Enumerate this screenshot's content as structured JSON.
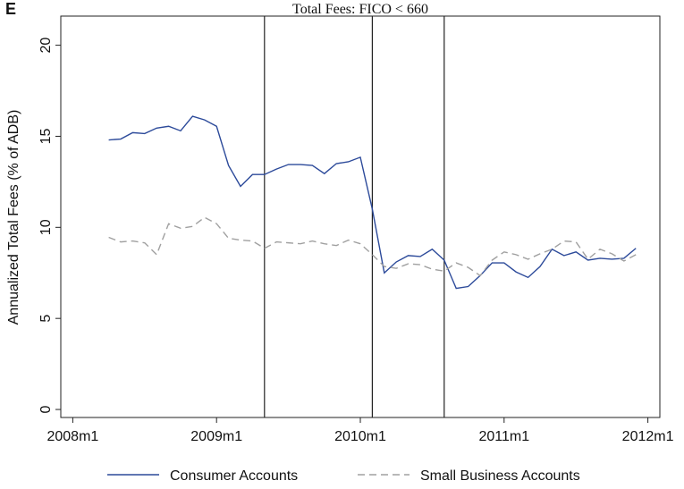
{
  "chart_data": {
    "type": "line",
    "panel_label": "E",
    "title": "Total Fees: FICO < 660",
    "y_label": "Annualized Total Fees (% of ADB)",
    "x": [
      579,
      580,
      581,
      582,
      583,
      584,
      585,
      586,
      587,
      588,
      589,
      590,
      591,
      592,
      593,
      594,
      595,
      596,
      597,
      598,
      599,
      600,
      601,
      602,
      603,
      604,
      605,
      606,
      607,
      608,
      609,
      610,
      611,
      612,
      613,
      614,
      615,
      616,
      617,
      618,
      619,
      620,
      621,
      622,
      623
    ],
    "series": [
      {
        "name": "Consumer Accounts",
        "color": "#2c4a9a",
        "dash": "none",
        "values": [
          14.8,
          14.85,
          15.2,
          15.15,
          15.45,
          15.55,
          15.3,
          16.1,
          15.9,
          15.55,
          13.4,
          12.25,
          12.9,
          12.9,
          13.2,
          13.45,
          13.45,
          13.4,
          12.95,
          13.5,
          13.6,
          13.85,
          11.0,
          7.5,
          8.1,
          8.45,
          8.4,
          8.8,
          8.2,
          6.65,
          6.75,
          7.35,
          8.05,
          8.05,
          7.55,
          7.25,
          7.85,
          8.8,
          8.45,
          8.65,
          8.2,
          8.3,
          8.25,
          8.3,
          8.85
        ]
      },
      {
        "name": "Small Business Accounts",
        "color": "#a0a0a0",
        "dash": "8 5",
        "values": [
          9.45,
          9.2,
          9.25,
          9.15,
          8.5,
          10.2,
          9.95,
          10.05,
          10.55,
          10.2,
          9.4,
          9.3,
          9.25,
          8.85,
          9.2,
          9.15,
          9.1,
          9.25,
          9.1,
          9.0,
          9.3,
          9.1,
          8.5,
          7.85,
          7.75,
          8.0,
          7.95,
          7.7,
          7.6,
          8.05,
          7.8,
          7.35,
          8.2,
          8.65,
          8.5,
          8.25,
          8.55,
          8.8,
          9.25,
          9.2,
          8.25,
          8.8,
          8.55,
          8.15,
          8.5
        ]
      }
    ],
    "vlines": [
      592,
      601,
      607
    ],
    "xlim": [
      575,
      625
    ],
    "xticks": [
      {
        "value": 576,
        "label": "2008m1"
      },
      {
        "value": 588,
        "label": "2009m1"
      },
      {
        "value": 600,
        "label": "2010m1"
      },
      {
        "value": 612,
        "label": "2011m1"
      },
      {
        "value": 624,
        "label": "2012m1"
      }
    ],
    "ylim": [
      -0.44,
      21.6
    ],
    "yticks": [
      0,
      5,
      10,
      15,
      20
    ]
  }
}
